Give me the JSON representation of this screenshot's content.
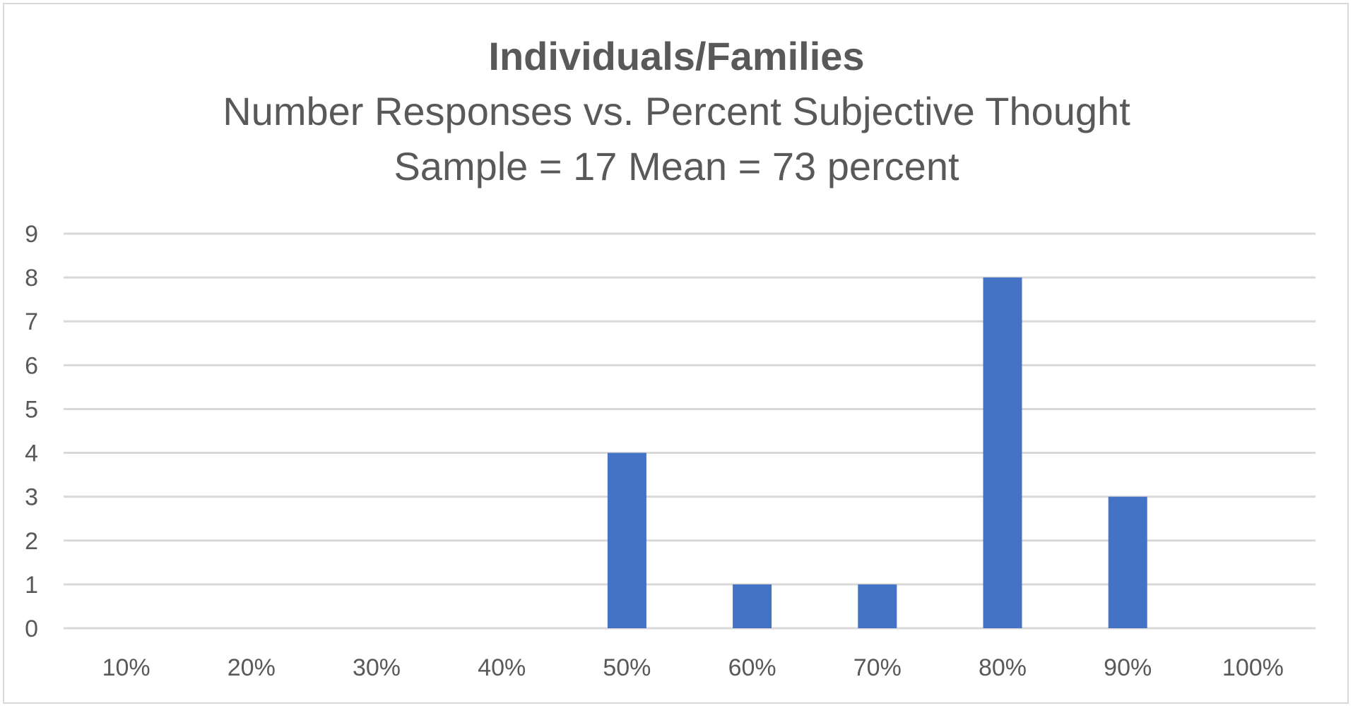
{
  "chart_data": {
    "type": "bar",
    "title": "Individuals/Families",
    "subtitle_lines": [
      "Number Responses vs. Percent Subjective Thought",
      "Sample = 17  Mean = 73 percent"
    ],
    "categories": [
      "10%",
      "20%",
      "30%",
      "40%",
      "50%",
      "60%",
      "70%",
      "80%",
      "90%",
      "100%"
    ],
    "values": [
      0,
      0,
      0,
      0,
      4,
      1,
      1,
      8,
      3,
      0
    ],
    "y_ticks": [
      "0",
      "1",
      "2",
      "3",
      "4",
      "5",
      "6",
      "7",
      "8",
      "9"
    ],
    "ylim": [
      0,
      9
    ],
    "grid": true,
    "legend": "none",
    "bar_color": "#4472C4",
    "grid_color": "#d9d9d9",
    "text_color": "#595959"
  }
}
